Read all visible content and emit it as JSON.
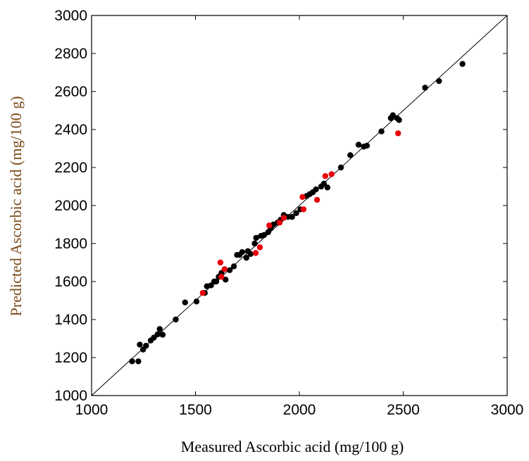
{
  "chart_data": {
    "type": "scatter",
    "xlabel": "Measured Ascorbic acid (mg/100 g)",
    "ylabel": "Predicted Ascorbic acid (mg/100 g)",
    "xlim": [
      1000,
      3000
    ],
    "ylim": [
      1000,
      3000
    ],
    "x_ticks": [
      "1000",
      "1500",
      "2000",
      "2500",
      "3000"
    ],
    "y_ticks": [
      "1000",
      "1200",
      "1400",
      "1600",
      "1800",
      "2000",
      "2200",
      "2400",
      "2600",
      "2800",
      "3000"
    ],
    "grid": false,
    "reference_line": {
      "from": [
        1000,
        1000
      ],
      "to": [
        3000,
        3000
      ]
    },
    "colors": {
      "series_1": "#000000",
      "series_2": "#e8000b",
      "axis": "#000000"
    },
    "series": [
      {
        "color": "#000000",
        "points": [
          [
            1195,
            1180
          ],
          [
            1225,
            1180
          ],
          [
            1232,
            1268
          ],
          [
            1248,
            1242
          ],
          [
            1262,
            1262
          ],
          [
            1285,
            1290
          ],
          [
            1300,
            1305
          ],
          [
            1318,
            1322
          ],
          [
            1328,
            1350
          ],
          [
            1342,
            1320
          ],
          [
            1405,
            1400
          ],
          [
            1450,
            1490
          ],
          [
            1505,
            1495
          ],
          [
            1545,
            1540
          ],
          [
            1555,
            1575
          ],
          [
            1575,
            1580
          ],
          [
            1590,
            1600
          ],
          [
            1600,
            1600
          ],
          [
            1612,
            1625
          ],
          [
            1625,
            1645
          ],
          [
            1645,
            1610
          ],
          [
            1665,
            1660
          ],
          [
            1685,
            1680
          ],
          [
            1700,
            1740
          ],
          [
            1712,
            1740
          ],
          [
            1725,
            1755
          ],
          [
            1745,
            1725
          ],
          [
            1752,
            1760
          ],
          [
            1765,
            1745
          ],
          [
            1785,
            1800
          ],
          [
            1792,
            1830
          ],
          [
            1815,
            1840
          ],
          [
            1830,
            1845
          ],
          [
            1850,
            1860
          ],
          [
            1862,
            1880
          ],
          [
            1875,
            1900
          ],
          [
            1895,
            1910
          ],
          [
            1910,
            1925
          ],
          [
            1925,
            1950
          ],
          [
            1945,
            1940
          ],
          [
            1965,
            1940
          ],
          [
            1985,
            1960
          ],
          [
            2005,
            1980
          ],
          [
            2035,
            2050
          ],
          [
            2050,
            2060
          ],
          [
            2065,
            2070
          ],
          [
            2080,
            2085
          ],
          [
            2105,
            2100
          ],
          [
            2118,
            2115
          ],
          [
            2135,
            2095
          ],
          [
            2200,
            2200
          ],
          [
            2245,
            2265
          ],
          [
            2285,
            2320
          ],
          [
            2310,
            2310
          ],
          [
            2325,
            2315
          ],
          [
            2395,
            2390
          ],
          [
            2440,
            2460
          ],
          [
            2450,
            2475
          ],
          [
            2470,
            2460
          ],
          [
            2480,
            2450
          ],
          [
            2605,
            2620
          ],
          [
            2672,
            2655
          ],
          [
            2785,
            2745
          ]
        ]
      },
      {
        "color": "#e8000b",
        "points": [
          [
            1535,
            1540
          ],
          [
            1620,
            1700
          ],
          [
            1625,
            1625
          ],
          [
            1640,
            1665
          ],
          [
            1790,
            1750
          ],
          [
            1810,
            1780
          ],
          [
            1855,
            1895
          ],
          [
            1905,
            1910
          ],
          [
            1925,
            1935
          ],
          [
            2015,
            2045
          ],
          [
            2020,
            1980
          ],
          [
            2085,
            2030
          ],
          [
            2125,
            2155
          ],
          [
            2155,
            2165
          ],
          [
            2475,
            2380
          ]
        ]
      }
    ]
  }
}
